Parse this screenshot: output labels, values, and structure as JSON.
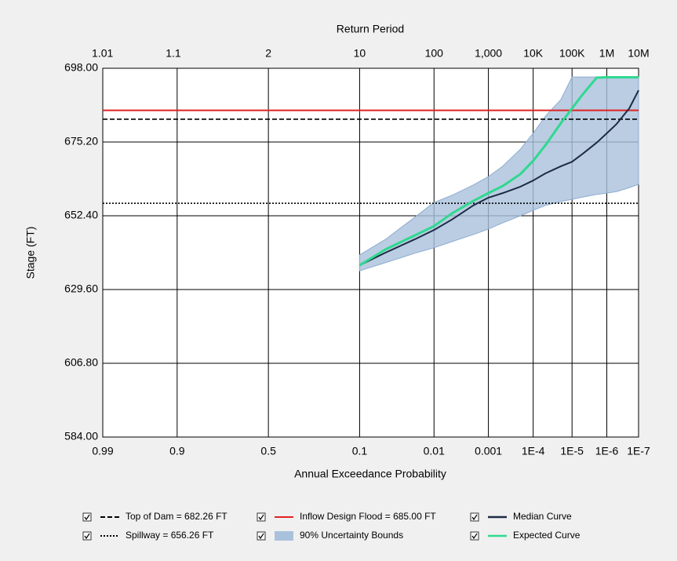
{
  "chart_data": {
    "type": "line",
    "x_scale": "probability",
    "x_label": "Annual Exceedance Probability",
    "x2_label": "Return Period",
    "y_label": "Stage (FT)",
    "xlim": [
      0.99,
      1e-07
    ],
    "xticks": [
      0.99,
      0.9,
      0.5,
      0.1,
      0.01,
      0.001,
      {
        "value": 0.0001,
        "label": "1E-4"
      },
      {
        "value": 1e-05,
        "label": "1E-5"
      },
      {
        "value": 1e-06,
        "label": "1E-6"
      },
      {
        "value": 1e-07,
        "label": "1E-7"
      }
    ],
    "x2ticks": [
      1.01,
      1.1,
      2,
      10,
      100,
      {
        "value": 1000,
        "label": "1,000"
      },
      {
        "value": 10000,
        "label": "10K"
      },
      {
        "value": 100000,
        "label": "100K"
      },
      {
        "value": 1000000,
        "label": "1M"
      },
      {
        "value": 10000000,
        "label": "10M"
      }
    ],
    "ylim": [
      584,
      698
    ],
    "yticks": [
      {
        "value": 584,
        "label": "584.00"
      },
      {
        "value": 606.8,
        "label": "606.80"
      },
      {
        "value": 629.6,
        "label": "629.60"
      },
      {
        "value": 652.4,
        "label": "652.40"
      },
      {
        "value": 675.2,
        "label": "675.20"
      },
      {
        "value": 698,
        "label": "698.00"
      }
    ],
    "grid": true,
    "x": [
      0.1,
      0.05,
      0.02,
      0.01,
      0.005,
      0.002,
      0.001,
      0.0005,
      0.0002,
      0.0001,
      5e-05,
      2e-05,
      1e-05,
      5e-06,
      2e-06,
      1e-06,
      5e-07,
      2e-07,
      1e-07
    ],
    "hlines": [
      {
        "name": "Top of Dam = 682.26 FT",
        "value": 682.26,
        "color": "#000000",
        "style": "dashed"
      },
      {
        "name": "Inflow Design Flood = 685.00 FT",
        "value": 685.0,
        "color": "#e02222",
        "style": "solid"
      },
      {
        "name": "Spillway = 656.26 FT",
        "value": 656.26,
        "color": "#000000",
        "style": "dotted"
      }
    ],
    "band": {
      "name": "90% Uncertainty Bounds",
      "color": "#a9c1dc",
      "upper": [
        640.3,
        645.1,
        651.9,
        656.5,
        658.7,
        661.9,
        664.5,
        667.7,
        673.0,
        677.9,
        683.2,
        688.3,
        695.3,
        695.3,
        695.3,
        695.3,
        695.3,
        695.3,
        695.3
      ],
      "lower": [
        635.4,
        637.9,
        640.8,
        642.5,
        644.4,
        646.6,
        648.3,
        650.2,
        652.4,
        654.1,
        655.6,
        656.8,
        657.5,
        658.2,
        659.0,
        659.4,
        659.9,
        661.1,
        662.1
      ]
    },
    "series": [
      {
        "name": "Median Curve",
        "color": "#1d2b44",
        "values": [
          637.1,
          641.0,
          645.1,
          648.0,
          651.2,
          655.6,
          658.0,
          659.4,
          661.4,
          663.3,
          665.5,
          667.7,
          669.1,
          671.6,
          675.0,
          677.9,
          680.8,
          685.6,
          691.2
        ]
      },
      {
        "name": "Expected Curve",
        "color": "#2fd98f",
        "values": [
          637.1,
          642.0,
          646.3,
          649.2,
          653.1,
          657.0,
          659.4,
          661.6,
          665.3,
          669.4,
          674.2,
          681.0,
          685.6,
          690.0,
          695.1,
          695.2,
          695.2,
          695.2,
          695.2
        ]
      }
    ]
  }
}
